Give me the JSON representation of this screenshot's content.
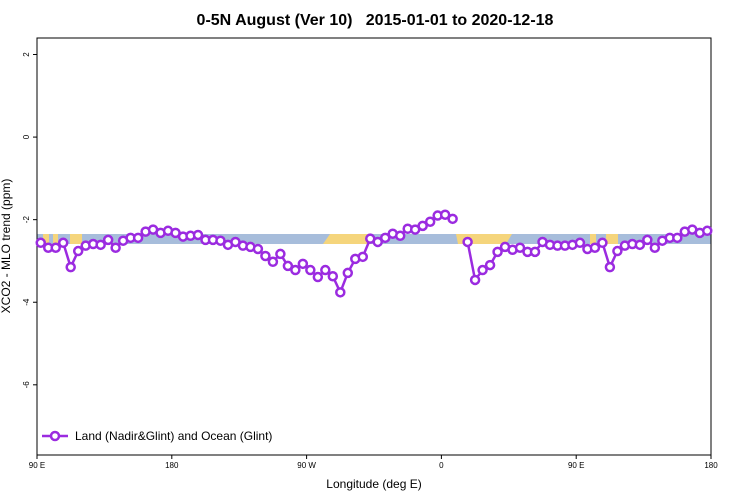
{
  "chart_data": {
    "type": "line",
    "title": "0-5N August (Ver 10)   2015-01-01 to 2020-12-18",
    "xlabel": "Longitude (deg E)",
    "ylabel": "XCO2 - MLO trend (ppm)",
    "xlim": [
      90,
      540
    ],
    "ylim": [
      -7.7,
      2.4
    ],
    "xticks": [
      {
        "value": 90,
        "label": "90 E"
      },
      180,
      {
        "value": 270,
        "label": "90 W"
      },
      {
        "value": 360,
        "label": "0"
      },
      {
        "value": 450,
        "label": "90 E"
      },
      {
        "value": 540,
        "label": "180"
      }
    ],
    "yticks": [
      2,
      0,
      -2,
      -4,
      -6
    ],
    "legend": "lower left",
    "series": [
      {
        "name": "Land (Nadir&Glint) and Ocean (Glint)",
        "color": "#9b2be0",
        "x": [
          92.5,
          97.5,
          102.5,
          107.5,
          112.5,
          117.5,
          122.5,
          127.5,
          132.5,
          137.5,
          142.5,
          147.5,
          152.5,
          157.5,
          162.5,
          167.5,
          172.5,
          177.5,
          182.5,
          187.5,
          192.5,
          197.5,
          202.5,
          207.5,
          212.5,
          217.5,
          222.5,
          227.5,
          232.5,
          237.5,
          242.5,
          247.5,
          252.5,
          257.5,
          262.5,
          267.5,
          272.5,
          277.5,
          282.5,
          287.5,
          292.5,
          297.5,
          302.5,
          307.5,
          312.5,
          317.5,
          322.5,
          327.5,
          332.5,
          337.5,
          342.5,
          347.5,
          352.5,
          357.5,
          362.5,
          367.5,
          372.5,
          377.5,
          382.5,
          387.5,
          392.5,
          397.5,
          402.5,
          407.5,
          412.5,
          417.5,
          422.5,
          427.5,
          432.5,
          437.5,
          442.5,
          447.5,
          452.5,
          457.5,
          462.5,
          467.5,
          472.5,
          477.5,
          482.5,
          487.5,
          492.5,
          497.5,
          502.5,
          507.5,
          512.5,
          517.5,
          522.5,
          527.5,
          532.5,
          537.5
        ],
        "values": [
          -2.56,
          -2.68,
          -2.68,
          -2.56,
          -3.15,
          -2.76,
          -2.63,
          -2.59,
          -2.61,
          -2.49,
          -2.68,
          -2.51,
          -2.44,
          -2.44,
          -2.29,
          -2.24,
          -2.32,
          -2.27,
          -2.32,
          -2.41,
          -2.39,
          -2.37,
          -2.49,
          -2.49,
          -2.51,
          -2.61,
          -2.54,
          -2.63,
          -2.66,
          -2.71,
          -2.88,
          -3.02,
          -2.83,
          -3.12,
          -3.22,
          -3.07,
          -3.22,
          -3.39,
          -3.22,
          -3.37,
          -3.76,
          -3.29,
          -2.95,
          -2.9,
          -2.46,
          -2.54,
          -2.44,
          -2.34,
          -2.39,
          -2.22,
          -2.24,
          -2.15,
          -2.05,
          -1.9,
          -1.88,
          -1.98,
          null,
          -2.54,
          -3.46,
          -3.22,
          -3.1,
          -2.78,
          -2.66,
          -2.73,
          -2.68,
          -2.78,
          -2.78,
          -2.54,
          -2.61,
          -2.63,
          -2.63,
          -2.61,
          -2.56,
          -2.71,
          -2.68,
          -2.56,
          -3.15,
          -2.76,
          -2.63,
          -2.59,
          -2.61,
          -2.49,
          -2.68,
          -2.51,
          -2.44,
          -2.44,
          -2.29,
          -2.24,
          -2.32,
          -2.27
        ]
      }
    ]
  }
}
